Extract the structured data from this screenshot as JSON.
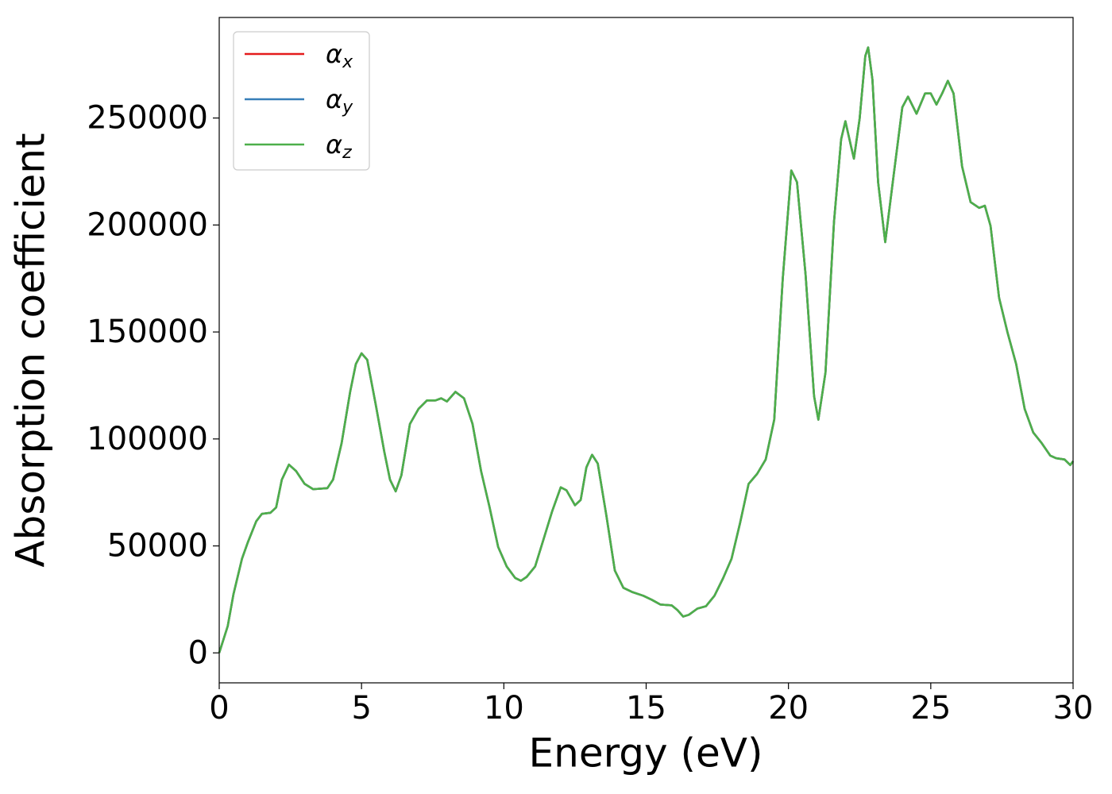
{
  "chart_data": {
    "type": "line",
    "xlabel": "Energy (eV)",
    "ylabel": "Absorption coefficient",
    "x": [
      0,
      0.3,
      0.5,
      0.8,
      1.0,
      1.3,
      1.5,
      1.8,
      2.0,
      2.2,
      2.45,
      2.7,
      3.0,
      3.3,
      3.8,
      4.0,
      4.3,
      4.6,
      4.8,
      5.0,
      5.2,
      5.5,
      5.8,
      6.0,
      6.2,
      6.4,
      6.7,
      7.0,
      7.3,
      7.6,
      7.8,
      8.0,
      8.3,
      8.6,
      8.9,
      9.2,
      9.5,
      9.8,
      10.1,
      10.4,
      10.6,
      10.8,
      11.1,
      11.4,
      11.7,
      12.0,
      12.2,
      12.5,
      12.7,
      12.9,
      13.1,
      13.3,
      13.6,
      13.9,
      14.2,
      14.5,
      14.9,
      15.2,
      15.5,
      15.9,
      16.1,
      16.3,
      16.5,
      16.8,
      17.1,
      17.4,
      17.7,
      18.0,
      18.3,
      18.6,
      18.9,
      19.2,
      19.5,
      19.8,
      20.1,
      20.3,
      20.6,
      20.9,
      21.05,
      21.3,
      21.6,
      21.85,
      22.0,
      22.2,
      22.3,
      22.5,
      22.7,
      22.8,
      22.95,
      23.15,
      23.4,
      23.7,
      24.0,
      24.2,
      24.5,
      24.8,
      25.0,
      25.2,
      25.4,
      25.6,
      25.8,
      26.1,
      26.4,
      26.7,
      26.9,
      27.1,
      27.4,
      27.7,
      28.0,
      28.3,
      28.6,
      28.9,
      29.2,
      29.4,
      29.7,
      29.9,
      30.0
    ],
    "series": [
      {
        "name": "αx",
        "color": "#e41a1c",
        "values": [
          0,
          12600,
          27400,
          44000,
          51500,
          61500,
          65000,
          65500,
          68000,
          81000,
          88000,
          85000,
          79000,
          76500,
          77000,
          81000,
          98000,
          122000,
          135000,
          140000,
          137000,
          116000,
          94000,
          81000,
          75500,
          83000,
          107000,
          114000,
          118000,
          118000,
          119000,
          117500,
          122000,
          119000,
          107000,
          85000,
          68000,
          49500,
          40400,
          35000,
          33700,
          35500,
          40400,
          53300,
          66300,
          77400,
          76000,
          69000,
          71500,
          86700,
          92600,
          88500,
          64400,
          38500,
          30400,
          28500,
          26700,
          24800,
          22600,
          22200,
          20000,
          17000,
          17800,
          20700,
          21800,
          26700,
          34800,
          44000,
          60700,
          79000,
          83700,
          90400,
          109000,
          175000,
          225500,
          220000,
          177000,
          120000,
          109000,
          131000,
          201500,
          240000,
          248500,
          236700,
          231000,
          249600,
          279000,
          283000,
          268000,
          220000,
          192000,
          223700,
          255000,
          260000,
          252000,
          261500,
          261500,
          256300,
          261500,
          267400,
          261500,
          227400,
          210700,
          208000,
          209000,
          199600,
          166000,
          149600,
          135000,
          114000,
          103000,
          98000,
          92200,
          91000,
          90400,
          87800,
          89600
        ]
      },
      {
        "name": "αy",
        "color": "#377eb8",
        "values": [
          0,
          12600,
          27400,
          44000,
          51500,
          61500,
          65000,
          65500,
          68000,
          81000,
          88000,
          85000,
          79000,
          76500,
          77000,
          81000,
          98000,
          122000,
          135000,
          140000,
          137000,
          116000,
          94000,
          81000,
          75500,
          83000,
          107000,
          114000,
          118000,
          118000,
          119000,
          117500,
          122000,
          119000,
          107000,
          85000,
          68000,
          49500,
          40400,
          35000,
          33700,
          35500,
          40400,
          53300,
          66300,
          77400,
          76000,
          69000,
          71500,
          86700,
          92600,
          88500,
          64400,
          38500,
          30400,
          28500,
          26700,
          24800,
          22600,
          22200,
          20000,
          17000,
          17800,
          20700,
          21800,
          26700,
          34800,
          44000,
          60700,
          79000,
          83700,
          90400,
          109000,
          175000,
          225500,
          220000,
          177000,
          120000,
          109000,
          131000,
          201500,
          240000,
          248500,
          236700,
          231000,
          249600,
          279000,
          283000,
          268000,
          220000,
          192000,
          223700,
          255000,
          260000,
          252000,
          261500,
          261500,
          256300,
          261500,
          267400,
          261500,
          227400,
          210700,
          208000,
          209000,
          199600,
          166000,
          149600,
          135000,
          114000,
          103000,
          98000,
          92200,
          91000,
          90400,
          87800,
          89600
        ]
      },
      {
        "name": "αz",
        "color": "#4daf4a",
        "values": [
          0,
          12600,
          27400,
          44000,
          51500,
          61500,
          65000,
          65500,
          68000,
          81000,
          88000,
          85000,
          79000,
          76500,
          77000,
          81000,
          98000,
          122000,
          135000,
          140000,
          137000,
          116000,
          94000,
          81000,
          75500,
          83000,
          107000,
          114000,
          118000,
          118000,
          119000,
          117500,
          122000,
          119000,
          107000,
          85000,
          68000,
          49500,
          40400,
          35000,
          33700,
          35500,
          40400,
          53300,
          66300,
          77400,
          76000,
          69000,
          71500,
          86700,
          92600,
          88500,
          64400,
          38500,
          30400,
          28500,
          26700,
          24800,
          22600,
          22200,
          20000,
          17000,
          17800,
          20700,
          21800,
          26700,
          34800,
          44000,
          60700,
          79000,
          83700,
          90400,
          109000,
          175000,
          225500,
          220000,
          177000,
          120000,
          109000,
          131000,
          201500,
          240000,
          248500,
          236700,
          231000,
          249600,
          279000,
          283000,
          268000,
          220000,
          192000,
          223700,
          255000,
          260000,
          252000,
          261500,
          261500,
          256300,
          261500,
          267400,
          261500,
          227400,
          210700,
          208000,
          209000,
          199600,
          166000,
          149600,
          135000,
          114000,
          103000,
          98000,
          92200,
          91000,
          90400,
          87800,
          89600
        ]
      }
    ],
    "xlim": [
      0,
      30
    ],
    "xticks": [
      0,
      5,
      10,
      15,
      20,
      25,
      30
    ],
    "ylim": [
      -14000,
      297000
    ],
    "yticks": [
      0,
      50000,
      100000,
      150000,
      200000,
      250000
    ],
    "grid": false,
    "legend": "upper left"
  }
}
